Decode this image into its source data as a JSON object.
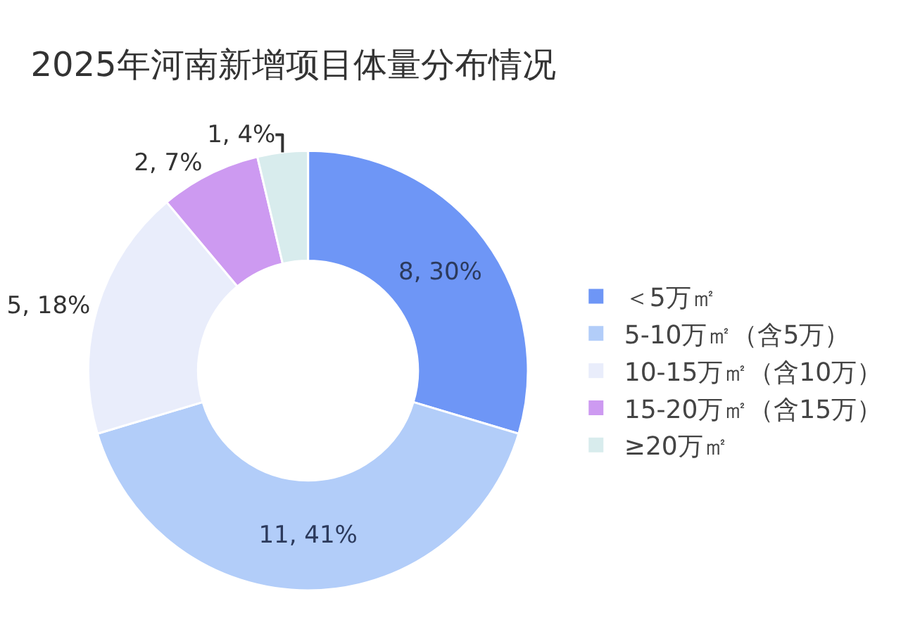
{
  "chart_data": {
    "type": "donut",
    "title": "2025年河南新增项目体量分布情况",
    "categories": [
      "＜5万㎡",
      "5-10万㎡（含5万）",
      "10-15万㎡（含10万）",
      "15-20万㎡（含15万）",
      "≥20万㎡"
    ],
    "values": [
      8,
      11,
      5,
      2,
      1
    ],
    "value_labels": [
      "8, 30%",
      "11, 41%",
      "5, 18%",
      "2, 7%",
      "1, 4%"
    ],
    "colors": [
      "#6e96f6",
      "#b2cdf9",
      "#e9edfb",
      "#cd9af1",
      "#d8eced"
    ],
    "legend": "right"
  }
}
